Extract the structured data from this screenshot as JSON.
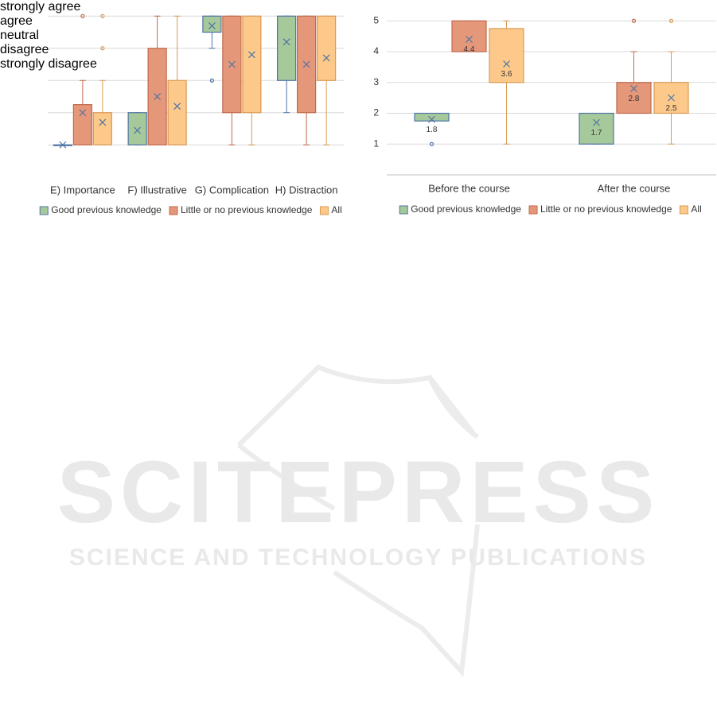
{
  "chart_data": [
    {
      "type": "box",
      "grid": true,
      "legend": "bottom",
      "mean_labels": false,
      "categories": [
        "E) Importance",
        "F) Illustrative",
        "G) Complication",
        "H) Distraction"
      ],
      "ylim": [
        0,
        5.5
      ],
      "yticks": [
        {
          "value": 1,
          "label": "strongly agree"
        },
        {
          "value": 2,
          "label": "agree"
        },
        {
          "value": 3,
          "label": "neutral"
        },
        {
          "value": 4,
          "label": "disagree"
        },
        {
          "value": 5,
          "label": "strongly disagree"
        }
      ],
      "series": [
        {
          "name": "Good previous knowledge",
          "color": "#a6c99b",
          "border": "#4f74a4",
          "values": [
            {
              "min": 1,
              "q1": 1,
              "q3": 1,
              "max": 1,
              "mean": 1,
              "outliers": []
            },
            {
              "min": 1,
              "q1": 1,
              "q3": 2,
              "max": 2,
              "mean": 1.45,
              "outliers": []
            },
            {
              "min": 4,
              "q1": 4.5,
              "q3": 5,
              "max": 5,
              "mean": 4.7,
              "outliers": [
                3
              ]
            },
            {
              "min": 2,
              "q1": 3,
              "q3": 5,
              "max": 5,
              "mean": 4.2,
              "outliers": []
            }
          ]
        },
        {
          "name": "Little or no previous knowledge",
          "color": "#e5977a",
          "border": "#c06a4b",
          "values": [
            {
              "min": 1,
              "q1": 1,
              "q3": 2.25,
              "max": 3,
              "mean": 2,
              "outliers": [
                5
              ]
            },
            {
              "min": 1,
              "q1": 1,
              "q3": 4,
              "max": 5,
              "mean": 2.5,
              "outliers": []
            },
            {
              "min": 1,
              "q1": 2,
              "q3": 5,
              "max": 5,
              "mean": 3.5,
              "outliers": []
            },
            {
              "min": 1,
              "q1": 2,
              "q3": 5,
              "max": 5,
              "mean": 3.5,
              "outliers": []
            }
          ]
        },
        {
          "name": "All",
          "color": "#fcc98b",
          "border": "#d99a55",
          "values": [
            {
              "min": 1,
              "q1": 1,
              "q3": 2,
              "max": 3,
              "mean": 1.7,
              "outliers": [
                5,
                4
              ]
            },
            {
              "min": 1,
              "q1": 1,
              "q3": 3,
              "max": 5,
              "mean": 2.2,
              "outliers": []
            },
            {
              "min": 1,
              "q1": 2,
              "q3": 5,
              "max": 5,
              "mean": 3.8,
              "outliers": []
            },
            {
              "min": 1,
              "q1": 3,
              "q3": 5,
              "max": 5,
              "mean": 3.7,
              "outliers": []
            }
          ]
        }
      ]
    },
    {
      "type": "box",
      "grid": true,
      "legend": "bottom",
      "mean_labels": true,
      "categories": [
        "Before the course",
        "After the course"
      ],
      "ylim": [
        0,
        5.6
      ],
      "yticks": [
        1,
        2,
        3,
        4,
        5
      ],
      "series": [
        {
          "name": "Good previous knowledge",
          "color": "#a6c99b",
          "border": "#4f74a4",
          "values": [
            {
              "min": 1.75,
              "q1": 1.75,
              "q3": 2,
              "max": 2,
              "mean": 1.8,
              "outliers": [
                1
              ]
            },
            {
              "min": 1,
              "q1": 1,
              "q3": 2,
              "max": 2,
              "mean": 1.7,
              "outliers": []
            }
          ]
        },
        {
          "name": "Little or no previous knowledge",
          "color": "#e5977a",
          "border": "#c06a4b",
          "values": [
            {
              "min": 4,
              "q1": 4,
              "q3": 5,
              "max": 5,
              "mean": 4.4,
              "outliers": []
            },
            {
              "min": 2,
              "q1": 2,
              "q3": 3,
              "max": 4,
              "mean": 2.8,
              "outliers": [
                5
              ]
            }
          ]
        },
        {
          "name": "All",
          "color": "#fcc98b",
          "border": "#d99a55",
          "values": [
            {
              "min": 1,
              "q1": 3,
              "q3": 4.75,
              "max": 5,
              "mean": 3.6,
              "outliers": []
            },
            {
              "min": 1,
              "q1": 2,
              "q3": 3,
              "max": 4,
              "mean": 2.5,
              "outliers": [
                5
              ]
            }
          ]
        }
      ]
    }
  ],
  "watermark": {
    "title": "SCITEPRESS",
    "subtitle": "SCIENCE AND TECHNOLOGY PUBLICATIONS"
  }
}
